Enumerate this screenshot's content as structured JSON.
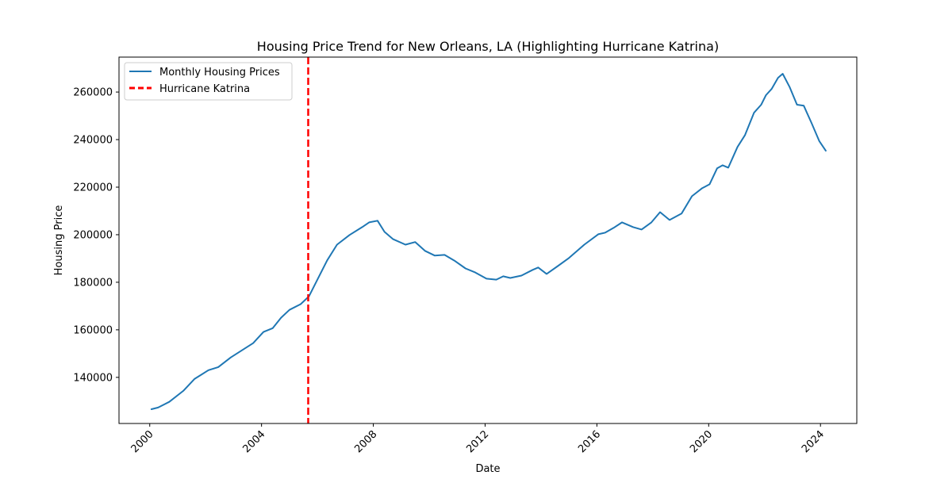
{
  "chart_data": {
    "type": "line",
    "title": "Housing Price Trend for New Orleans, LA (Highlighting Hurricane Katrina)",
    "xlabel": "Date",
    "ylabel": "Housing Price",
    "xlim": [
      1998.9,
      2025.3
    ],
    "ylim": [
      120600,
      274700
    ],
    "x_ticks": [
      2000,
      2004,
      2008,
      2012,
      2016,
      2020,
      2024
    ],
    "x_tick_labels": [
      "2000",
      "2004",
      "2008",
      "2012",
      "2016",
      "2020",
      "2024"
    ],
    "y_ticks": [
      140000,
      160000,
      180000,
      200000,
      220000,
      240000,
      260000
    ],
    "y_tick_labels": [
      "140000",
      "160000",
      "180000",
      "200000",
      "220000",
      "240000",
      "260000"
    ],
    "grid": false,
    "legend": {
      "placement": "top-left",
      "entries": [
        {
          "label": "Monthly Housing Prices",
          "color": "#1f77b4",
          "style": "solid"
        },
        {
          "label": "Hurricane Katrina",
          "color": "#ff0000",
          "style": "dashed"
        }
      ]
    },
    "series": [
      {
        "name": "Monthly Housing Prices",
        "color": "#1f77b4",
        "x": [
          2000.06,
          2000.3,
          2000.7,
          2001.2,
          2001.6,
          2002.1,
          2002.45,
          2002.9,
          2003.3,
          2003.7,
          2004.07,
          2004.4,
          2004.7,
          2005.0,
          2005.4,
          2005.7,
          2006.0,
          2006.35,
          2006.7,
          2007.15,
          2007.6,
          2007.85,
          2008.15,
          2008.4,
          2008.7,
          2009.15,
          2009.5,
          2009.85,
          2010.2,
          2010.55,
          2010.9,
          2011.3,
          2011.65,
          2012.05,
          2012.4,
          2012.65,
          2012.9,
          2013.3,
          2013.7,
          2013.9,
          2014.2,
          2014.6,
          2015.0,
          2015.55,
          2016.05,
          2016.3,
          2016.6,
          2016.9,
          2017.3,
          2017.6,
          2017.95,
          2018.26,
          2018.6,
          2019.03,
          2019.4,
          2019.77,
          2020.03,
          2020.3,
          2020.5,
          2020.7,
          2021.03,
          2021.3,
          2021.62,
          2021.88,
          2022.05,
          2022.25,
          2022.48,
          2022.65,
          2022.9,
          2023.16,
          2023.4,
          2023.68,
          2023.96,
          2024.19
        ],
        "values": [
          126600,
          127300,
          129700,
          134300,
          139300,
          143000,
          144300,
          148400,
          151400,
          154400,
          159100,
          160700,
          165100,
          168400,
          170800,
          174100,
          181100,
          189200,
          195800,
          199900,
          203200,
          205200,
          205900,
          201200,
          198200,
          195800,
          196900,
          193200,
          191200,
          191500,
          189100,
          185800,
          184100,
          181500,
          181100,
          182500,
          181800,
          182800,
          185200,
          186200,
          183500,
          186800,
          190200,
          195800,
          200200,
          200900,
          202900,
          205200,
          203200,
          202200,
          205200,
          209500,
          206200,
          208900,
          216200,
          219600,
          221200,
          227900,
          229200,
          228200,
          236900,
          241900,
          251300,
          254700,
          258700,
          261300,
          266000,
          267700,
          262000,
          254700,
          254300,
          247000,
          239300,
          235300
        ]
      }
    ],
    "annotations": [
      {
        "type": "vline",
        "label": "Hurricane Katrina",
        "x": 2005.67,
        "color": "#ff0000",
        "style": "dashed"
      }
    ]
  }
}
